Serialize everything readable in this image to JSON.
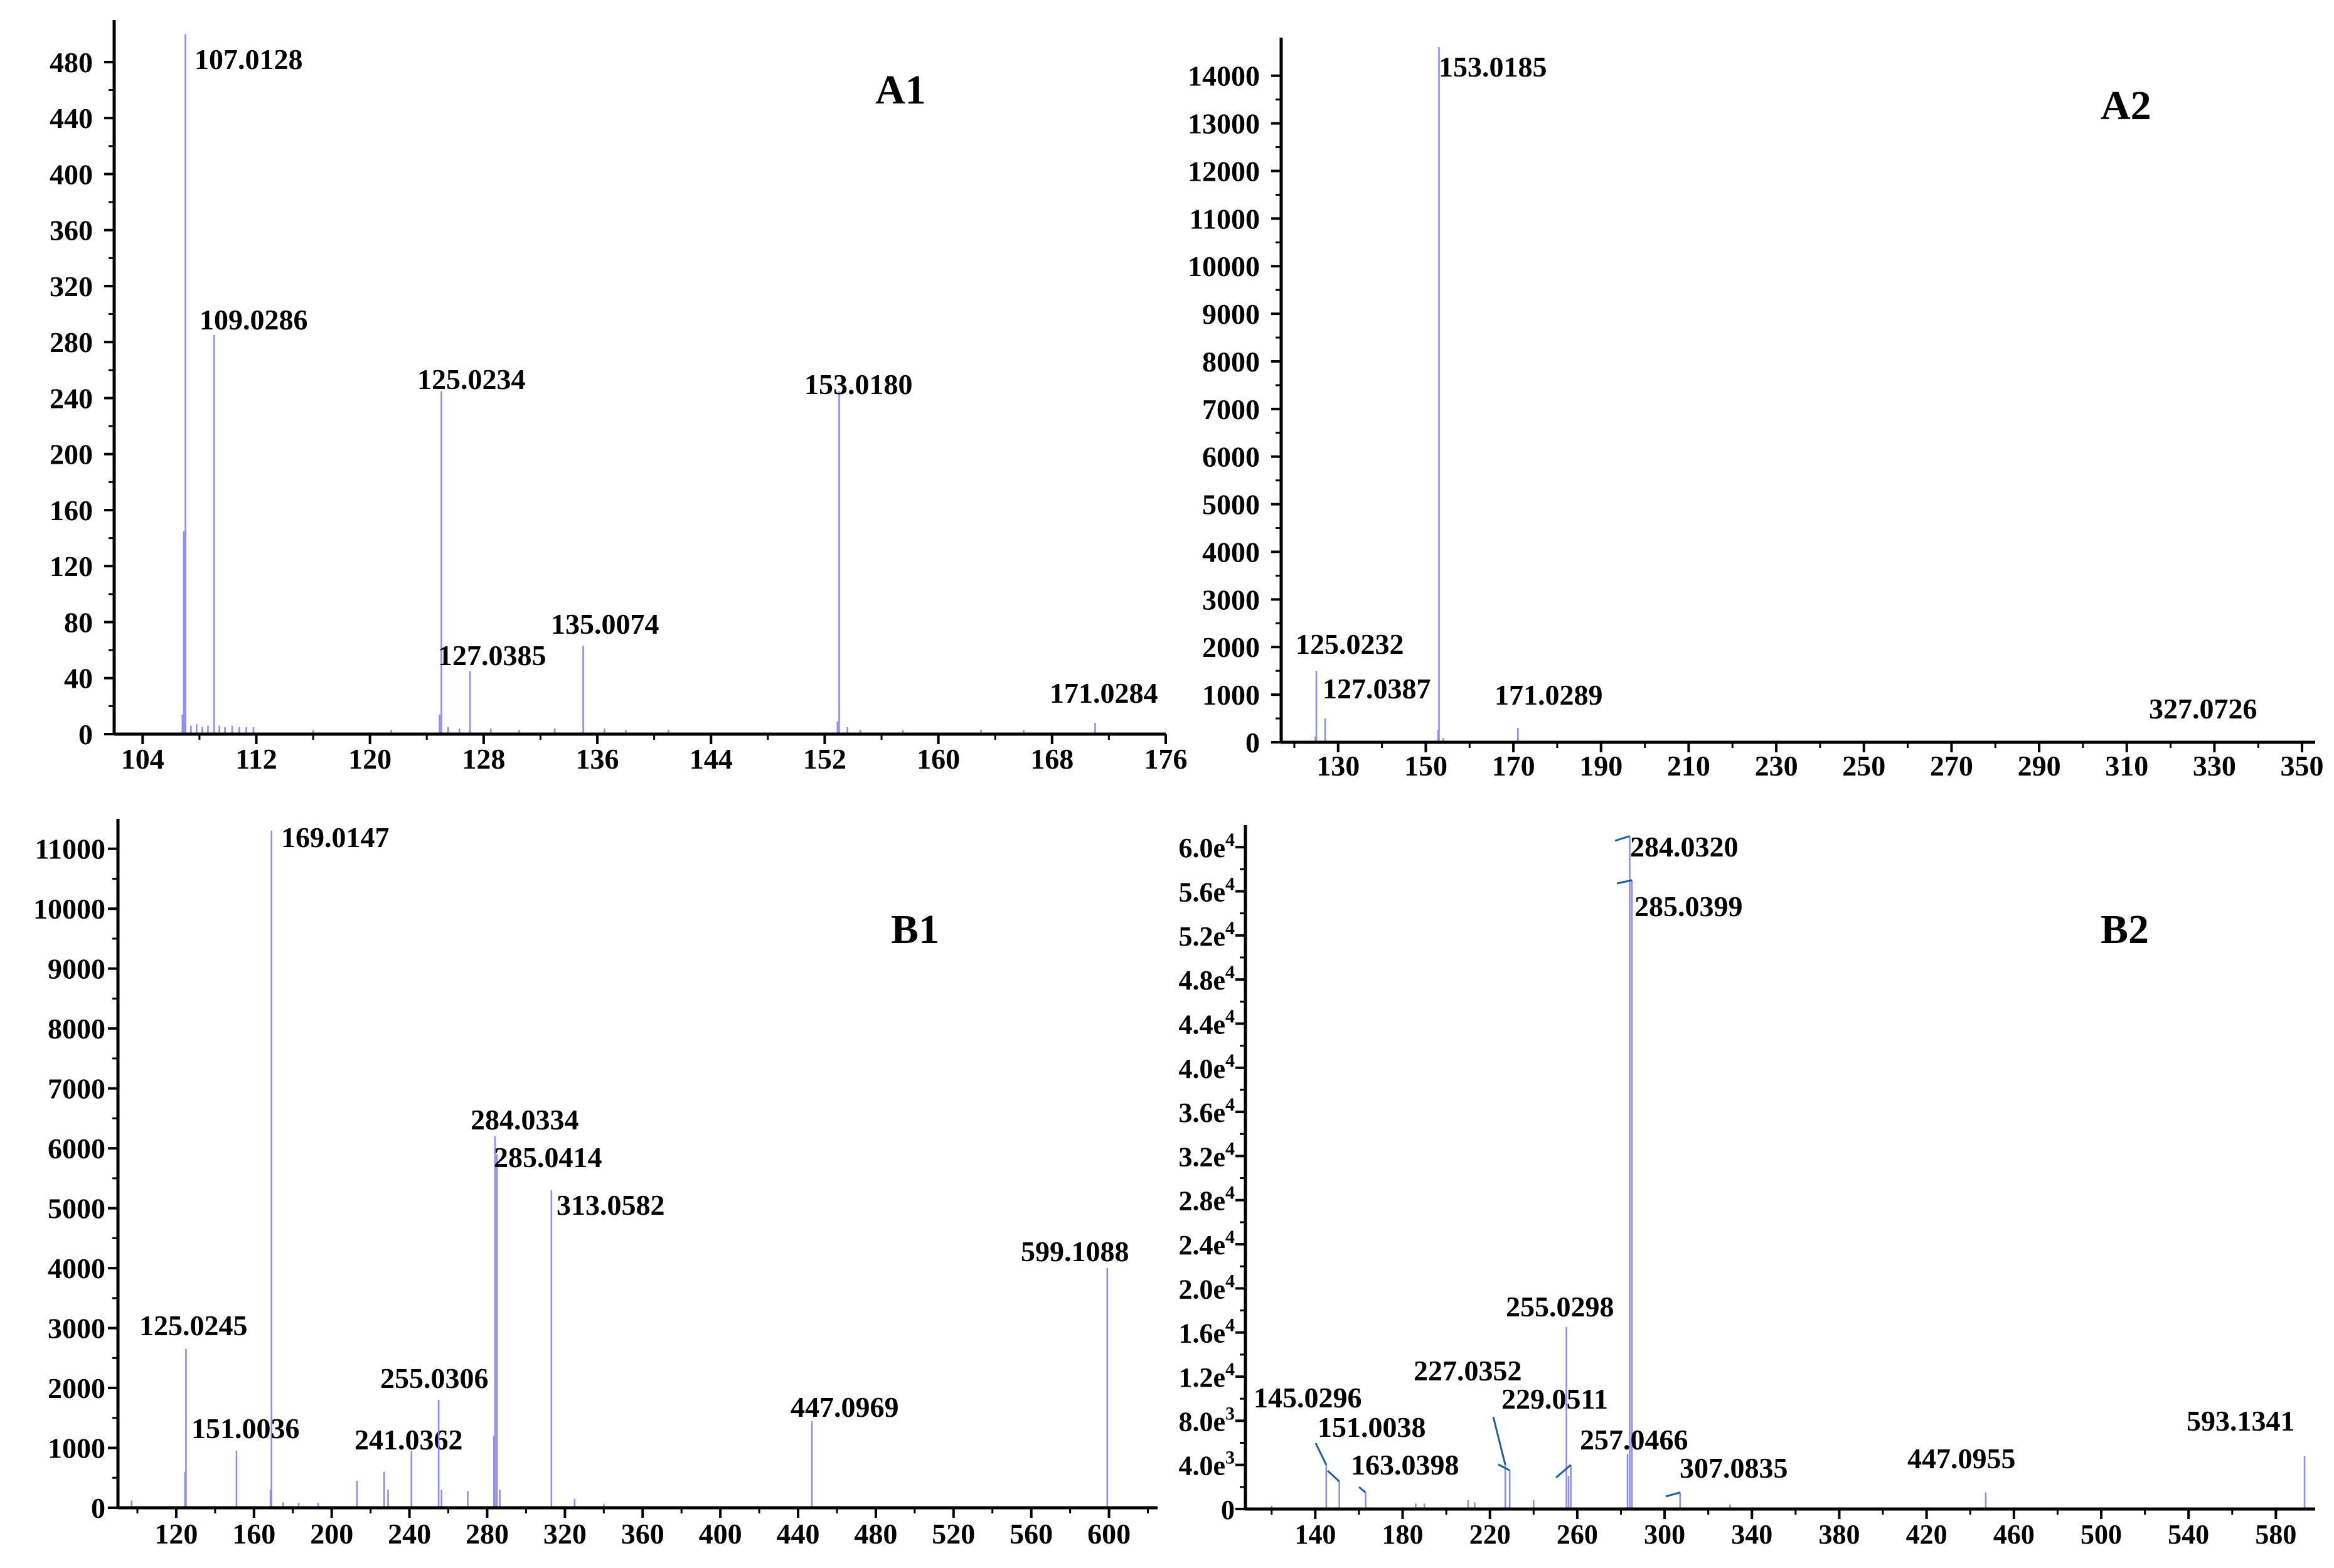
{
  "chart_data": [
    {
      "type": "bar",
      "title": "A1",
      "xlabel": "",
      "ylabel": "",
      "xlim": [
        102,
        176
      ],
      "ylim": [
        0,
        510
      ],
      "x_ticks": [
        104,
        112,
        120,
        128,
        136,
        144,
        152,
        160,
        168,
        176
      ],
      "y_ticks": [
        0,
        40,
        80,
        120,
        160,
        200,
        240,
        280,
        320,
        360,
        400,
        440,
        480
      ],
      "labeled_peaks": [
        {
          "mz": 107.0128,
          "intensity": 500,
          "label": "107.0128"
        },
        {
          "mz": 109.0286,
          "intensity": 285,
          "label": "109.0286"
        },
        {
          "mz": 125.0234,
          "intensity": 245,
          "label": "125.0234"
        },
        {
          "mz": 127.0385,
          "intensity": 45,
          "label": "127.0385"
        },
        {
          "mz": 135.0074,
          "intensity": 63,
          "label": "135.0074"
        },
        {
          "mz": 153.018,
          "intensity": 245,
          "label": "153.0180"
        },
        {
          "mz": 171.0284,
          "intensity": 8,
          "label": "171.0284"
        }
      ],
      "minor_peaks": [
        {
          "mz": 106.9,
          "intensity": 145
        },
        {
          "mz": 106.8,
          "intensity": 14
        },
        {
          "mz": 107.4,
          "intensity": 6
        },
        {
          "mz": 107.8,
          "intensity": 7
        },
        {
          "mz": 108.2,
          "intensity": 5
        },
        {
          "mz": 108.6,
          "intensity": 6
        },
        {
          "mz": 109.4,
          "intensity": 6
        },
        {
          "mz": 109.8,
          "intensity": 5
        },
        {
          "mz": 110.3,
          "intensity": 6
        },
        {
          "mz": 110.8,
          "intensity": 5
        },
        {
          "mz": 111.3,
          "intensity": 5
        },
        {
          "mz": 111.8,
          "intensity": 5
        },
        {
          "mz": 116,
          "intensity": 3
        },
        {
          "mz": 121.5,
          "intensity": 3
        },
        {
          "mz": 124.9,
          "intensity": 14
        },
        {
          "mz": 125.5,
          "intensity": 5
        },
        {
          "mz": 126.3,
          "intensity": 4
        },
        {
          "mz": 128.5,
          "intensity": 4
        },
        {
          "mz": 130.5,
          "intensity": 3
        },
        {
          "mz": 133,
          "intensity": 4
        },
        {
          "mz": 136.5,
          "intensity": 4
        },
        {
          "mz": 138,
          "intensity": 3
        },
        {
          "mz": 141,
          "intensity": 3
        },
        {
          "mz": 152.9,
          "intensity": 9
        },
        {
          "mz": 153.6,
          "intensity": 5
        },
        {
          "mz": 154.5,
          "intensity": 3
        },
        {
          "mz": 157.5,
          "intensity": 3
        },
        {
          "mz": 163,
          "intensity": 3
        },
        {
          "mz": 166,
          "intensity": 3
        }
      ]
    },
    {
      "type": "bar",
      "title": "A2",
      "xlabel": "",
      "ylabel": "",
      "xlim": [
        117,
        353
      ],
      "ylim": [
        0,
        14800
      ],
      "x_ticks": [
        130,
        150,
        170,
        190,
        210,
        230,
        250,
        270,
        290,
        310,
        330,
        350
      ],
      "y_ticks": [
        0,
        1000,
        2000,
        3000,
        4000,
        5000,
        6000,
        7000,
        8000,
        9000,
        10000,
        11000,
        12000,
        13000,
        14000
      ],
      "labeled_peaks": [
        {
          "mz": 153.0185,
          "intensity": 14600,
          "label": "153.0185"
        },
        {
          "mz": 125.0232,
          "intensity": 1500,
          "label": "125.0232"
        },
        {
          "mz": 127.0387,
          "intensity": 500,
          "label": "127.0387"
        },
        {
          "mz": 171.0289,
          "intensity": 300,
          "label": "171.0289"
        },
        {
          "mz": 327.0726,
          "intensity": 0,
          "label": "327.0726"
        }
      ],
      "minor_peaks": [
        {
          "mz": 124.8,
          "intensity": 120
        },
        {
          "mz": 152.8,
          "intensity": 260
        },
        {
          "mz": 154,
          "intensity": 90
        }
      ]
    },
    {
      "type": "bar",
      "title": "B1",
      "xlabel": "",
      "ylabel": "",
      "xlim": [
        90,
        625
      ],
      "ylim": [
        0,
        11500
      ],
      "x_ticks": [
        120,
        160,
        200,
        240,
        280,
        320,
        360,
        400,
        440,
        480,
        520,
        560,
        600
      ],
      "y_ticks": [
        0,
        1000,
        2000,
        3000,
        4000,
        5000,
        6000,
        7000,
        8000,
        9000,
        10000,
        11000
      ],
      "labeled_peaks": [
        {
          "mz": 169.0147,
          "intensity": 11300,
          "label": "169.0147"
        },
        {
          "mz": 125.0245,
          "intensity": 2650,
          "label": "125.0245"
        },
        {
          "mz": 151.0036,
          "intensity": 950,
          "label": "151.0036"
        },
        {
          "mz": 241.0362,
          "intensity": 950,
          "label": "241.0362"
        },
        {
          "mz": 255.0306,
          "intensity": 1800,
          "label": "255.0306"
        },
        {
          "mz": 284.0334,
          "intensity": 6200,
          "label": "284.0334"
        },
        {
          "mz": 285.0414,
          "intensity": 5900,
          "label": "285.0414"
        },
        {
          "mz": 313.0582,
          "intensity": 5300,
          "label": "313.0582"
        },
        {
          "mz": 447.0969,
          "intensity": 1450,
          "label": "447.0969"
        },
        {
          "mz": 599.1088,
          "intensity": 4000,
          "label": "599.1088"
        }
      ],
      "minor_peaks": [
        {
          "mz": 97,
          "intensity": 120
        },
        {
          "mz": 124.5,
          "intensity": 600
        },
        {
          "mz": 168.5,
          "intensity": 300
        },
        {
          "mz": 175,
          "intensity": 90
        },
        {
          "mz": 183,
          "intensity": 80
        },
        {
          "mz": 193,
          "intensity": 80
        },
        {
          "mz": 213,
          "intensity": 450
        },
        {
          "mz": 227,
          "intensity": 600
        },
        {
          "mz": 229,
          "intensity": 300
        },
        {
          "mz": 256.5,
          "intensity": 300
        },
        {
          "mz": 270,
          "intensity": 280
        },
        {
          "mz": 283.5,
          "intensity": 1200
        },
        {
          "mz": 286.5,
          "intensity": 300
        },
        {
          "mz": 325,
          "intensity": 150
        },
        {
          "mz": 340,
          "intensity": 60
        }
      ]
    },
    {
      "type": "bar",
      "title": "B2",
      "xlabel": "",
      "ylabel": "",
      "xlim": [
        108,
        598
      ],
      "ylim": [
        0,
        62000
      ],
      "x_ticks": [
        140,
        180,
        220,
        260,
        300,
        340,
        380,
        420,
        460,
        500,
        540,
        580
      ],
      "y_ticks": [
        0,
        4000,
        8000,
        12000,
        16000,
        20000,
        24000,
        28000,
        32000,
        36000,
        40000,
        44000,
        48000,
        52000,
        56000,
        60000
      ],
      "y_tick_labels": [
        {
          "base": "0",
          "exp": ""
        },
        {
          "base": "4.0e",
          "exp": "3"
        },
        {
          "base": "8.0e",
          "exp": "3"
        },
        {
          "base": "1.2e",
          "exp": "4"
        },
        {
          "base": "1.6e",
          "exp": "4"
        },
        {
          "base": "2.0e",
          "exp": "4"
        },
        {
          "base": "2.4e",
          "exp": "4"
        },
        {
          "base": "2.8e",
          "exp": "4"
        },
        {
          "base": "3.2e",
          "exp": "4"
        },
        {
          "base": "3.6e",
          "exp": "4"
        },
        {
          "base": "4.0e",
          "exp": "4"
        },
        {
          "base": "4.4e",
          "exp": "4"
        },
        {
          "base": "4.8e",
          "exp": "4"
        },
        {
          "base": "5.2e",
          "exp": "4"
        },
        {
          "base": "5.6e",
          "exp": "4"
        },
        {
          "base": "6.0e",
          "exp": "4"
        }
      ],
      "labeled_peaks": [
        {
          "mz": 284.032,
          "intensity": 61000,
          "label": "284.0320"
        },
        {
          "mz": 285.0399,
          "intensity": 57000,
          "label": "285.0399"
        },
        {
          "mz": 255.0298,
          "intensity": 16500,
          "label": "255.0298"
        },
        {
          "mz": 227.0352,
          "intensity": 4000,
          "label": "227.0352"
        },
        {
          "mz": 229.0511,
          "intensity": 3500,
          "label": "229.0511"
        },
        {
          "mz": 145.0296,
          "intensity": 4000,
          "label": "145.0296"
        },
        {
          "mz": 151.0038,
          "intensity": 2500,
          "label": "151.0038"
        },
        {
          "mz": 163.0398,
          "intensity": 1500,
          "label": "163.0398"
        },
        {
          "mz": 257.0466,
          "intensity": 4000,
          "label": "257.0466"
        },
        {
          "mz": 307.0835,
          "intensity": 1500,
          "label": "307.0835"
        },
        {
          "mz": 447.0955,
          "intensity": 1500,
          "label": "447.0955"
        },
        {
          "mz": 593.1341,
          "intensity": 4800,
          "label": "593.1341"
        }
      ],
      "minor_peaks": [
        {
          "mz": 120,
          "intensity": 300
        },
        {
          "mz": 186,
          "intensity": 500
        },
        {
          "mz": 190,
          "intensity": 500
        },
        {
          "mz": 210,
          "intensity": 800
        },
        {
          "mz": 213,
          "intensity": 600
        },
        {
          "mz": 240,
          "intensity": 800
        },
        {
          "mz": 256,
          "intensity": 3000
        },
        {
          "mz": 283,
          "intensity": 5000
        },
        {
          "mz": 330,
          "intensity": 400
        }
      ]
    }
  ]
}
